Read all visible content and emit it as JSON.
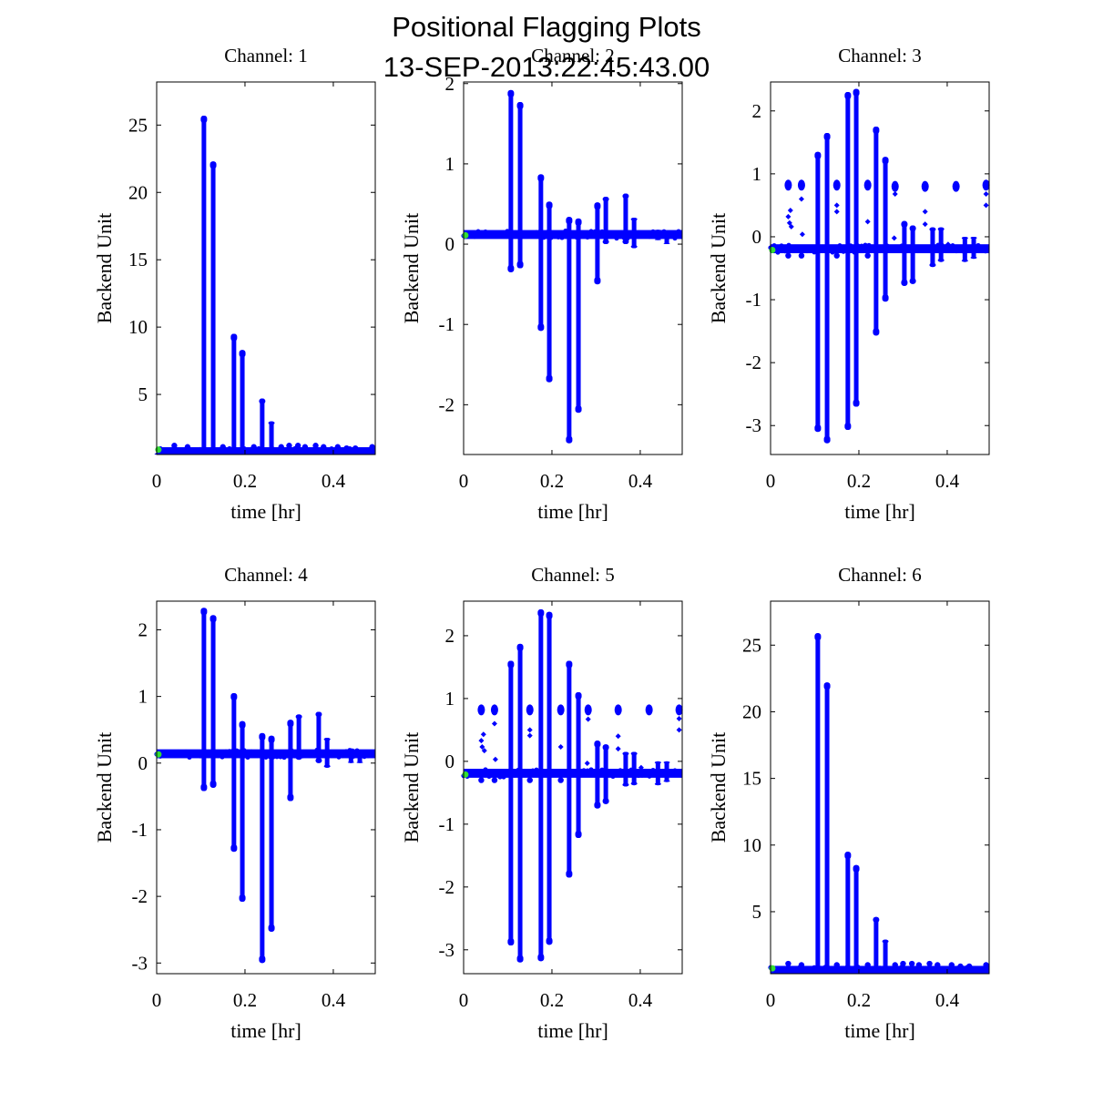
{
  "figure": {
    "title_line1": "Positional Flagging Plots",
    "title_line2": "13-SEP-2013:22:45:43.00"
  },
  "colors": {
    "data": "#0000ff",
    "start_marker": "#33dd33",
    "axes": "#000000"
  },
  "chart_data": [
    {
      "type": "scatter",
      "title": "Channel: 1",
      "xlabel": "time [hr]",
      "ylabel": "Backend Unit",
      "xlim": [
        0,
        0.495
      ],
      "ylim": [
        0.54,
        28.2
      ],
      "xticks": [
        0,
        0.2,
        0.4
      ],
      "xtick_labels": [
        "0",
        "0.2",
        "0.4"
      ],
      "yticks": [
        5,
        10,
        15,
        20,
        25
      ],
      "ytick_labels": [
        "5",
        "10",
        "15",
        "20",
        "25"
      ],
      "baseline": 0.75,
      "start_point": [
        0.004,
        0.9
      ],
      "spikes": [
        [
          0.107,
          0.6,
          25.7
        ],
        [
          0.128,
          0.6,
          22.3
        ],
        [
          0.175,
          0.6,
          9.5
        ],
        [
          0.194,
          0.6,
          8.3
        ],
        [
          0.239,
          0.6,
          4.7
        ],
        [
          0.26,
          0.6,
          3.0
        ]
      ],
      "bumps": [
        [
          0.04,
          1.2
        ],
        [
          0.07,
          1.1
        ],
        [
          0.15,
          1.1
        ],
        [
          0.22,
          1.1
        ],
        [
          0.282,
          1.1
        ],
        [
          0.3,
          1.2
        ],
        [
          0.32,
          1.2
        ],
        [
          0.336,
          1.1
        ],
        [
          0.36,
          1.2
        ],
        [
          0.378,
          1.1
        ],
        [
          0.41,
          1.1
        ],
        [
          0.43,
          1.0
        ],
        [
          0.45,
          1.0
        ],
        [
          0.488,
          1.1
        ]
      ],
      "clusters": []
    },
    {
      "type": "scatter",
      "title": "Channel: 2",
      "xlabel": "time [hr]",
      "ylabel": "Backend Unit",
      "xlim": [
        0,
        0.495
      ],
      "ylim": [
        -2.62,
        2.02
      ],
      "xticks": [
        0,
        0.2,
        0.4
      ],
      "xtick_labels": [
        "0",
        "0.2",
        "0.4"
      ],
      "yticks": [
        -2,
        -1,
        0,
        1,
        2
      ],
      "ytick_labels": [
        "-2",
        "-1",
        "0",
        "1",
        "2"
      ],
      "baseline": 0.12,
      "start_point": [
        0.004,
        0.11
      ],
      "spikes": [
        [
          0.107,
          -0.35,
          1.92
        ],
        [
          0.128,
          -0.3,
          1.77
        ],
        [
          0.175,
          -1.08,
          0.87
        ],
        [
          0.194,
          -1.72,
          0.53
        ],
        [
          0.239,
          -2.48,
          0.34
        ],
        [
          0.26,
          -2.1,
          0.32
        ],
        [
          0.303,
          -0.5,
          0.52
        ],
        [
          0.322,
          0.0,
          0.59
        ],
        [
          0.367,
          0.0,
          0.63
        ],
        [
          0.386,
          -0.05,
          0.33
        ],
        [
          0.44,
          0.05,
          0.18
        ],
        [
          0.46,
          0.0,
          0.17
        ]
      ],
      "bumps": [],
      "clusters": []
    },
    {
      "type": "scatter",
      "title": "Channel: 3",
      "xlabel": "time [hr]",
      "ylabel": "Backend Unit",
      "xlim": [
        0,
        0.495
      ],
      "ylim": [
        -3.46,
        2.46
      ],
      "xticks": [
        0,
        0.2,
        0.4
      ],
      "xtick_labels": [
        "0",
        "0.2",
        "0.4"
      ],
      "yticks": [
        -3,
        -2,
        -1,
        0,
        1,
        2
      ],
      "ytick_labels": [
        "-3",
        "-2",
        "-1",
        "0",
        "1",
        "2"
      ],
      "baseline": -0.19,
      "start_point": [
        0.004,
        -0.21
      ],
      "spikes": [
        [
          0.107,
          -3.1,
          1.35
        ],
        [
          0.128,
          -3.28,
          1.65
        ],
        [
          0.175,
          -3.07,
          2.3
        ],
        [
          0.194,
          -2.7,
          2.35
        ],
        [
          0.239,
          -1.57,
          1.75
        ],
        [
          0.26,
          -1.03,
          1.27
        ],
        [
          0.303,
          -0.78,
          0.25
        ],
        [
          0.322,
          -0.75,
          0.18
        ],
        [
          0.367,
          -0.48,
          0.15
        ],
        [
          0.386,
          -0.4,
          0.15
        ],
        [
          0.44,
          -0.4,
          0.0
        ],
        [
          0.46,
          -0.35,
          0.0
        ]
      ],
      "bumps": [
        [
          0.04,
          -0.3
        ],
        [
          0.07,
          -0.3
        ],
        [
          0.15,
          -0.3
        ],
        [
          0.22,
          -0.3
        ]
      ],
      "clusters": [
        [
          0.04,
          0.82
        ],
        [
          0.07,
          0.82
        ],
        [
          0.15,
          0.82
        ],
        [
          0.22,
          0.82
        ],
        [
          0.282,
          0.8
        ],
        [
          0.35,
          0.8
        ],
        [
          0.42,
          0.8
        ],
        [
          0.488,
          0.82
        ]
      ],
      "scatter_points": [
        [
          0.04,
          0.32
        ],
        [
          0.043,
          0.22
        ],
        [
          0.045,
          0.42
        ],
        [
          0.047,
          0.16
        ],
        [
          0.07,
          0.6
        ],
        [
          0.072,
          0.04
        ],
        [
          0.15,
          0.5
        ],
        [
          0.15,
          0.4
        ],
        [
          0.22,
          0.24
        ],
        [
          0.282,
          0.68
        ],
        [
          0.28,
          -0.02
        ],
        [
          0.35,
          0.4
        ],
        [
          0.35,
          0.2
        ],
        [
          0.402,
          -0.12
        ],
        [
          0.488,
          0.68
        ],
        [
          0.488,
          0.5
        ]
      ]
    },
    {
      "type": "scatter",
      "title": "Channel: 4",
      "xlabel": "time [hr]",
      "ylabel": "Backend Unit",
      "xlim": [
        0,
        0.495
      ],
      "ylim": [
        -3.16,
        2.43
      ],
      "xticks": [
        0,
        0.2,
        0.4
      ],
      "xtick_labels": [
        "0",
        "0.2",
        "0.4"
      ],
      "yticks": [
        -3,
        -2,
        -1,
        0,
        1,
        2
      ],
      "ytick_labels": [
        "-3",
        "-2",
        "-1",
        "0",
        "1",
        "2"
      ],
      "baseline": 0.14,
      "start_point": [
        0.004,
        0.13
      ],
      "spikes": [
        [
          0.107,
          -0.42,
          2.33
        ],
        [
          0.128,
          -0.37,
          2.22
        ],
        [
          0.175,
          -1.33,
          1.05
        ],
        [
          0.194,
          -2.08,
          0.63
        ],
        [
          0.239,
          -3.0,
          0.45
        ],
        [
          0.26,
          -2.53,
          0.41
        ],
        [
          0.303,
          -0.57,
          0.65
        ],
        [
          0.322,
          0.05,
          0.73
        ],
        [
          0.367,
          0.0,
          0.77
        ],
        [
          0.386,
          -0.07,
          0.38
        ],
        [
          0.44,
          0.0,
          0.22
        ],
        [
          0.46,
          0.0,
          0.2
        ]
      ],
      "bumps": [],
      "clusters": []
    },
    {
      "type": "scatter",
      "title": "Channel: 5",
      "xlabel": "time [hr]",
      "ylabel": "Backend Unit",
      "xlim": [
        0,
        0.495
      ],
      "ylim": [
        -3.38,
        2.55
      ],
      "xticks": [
        0,
        0.2,
        0.4
      ],
      "xtick_labels": [
        "0",
        "0.2",
        "0.4"
      ],
      "yticks": [
        -3,
        -2,
        -1,
        0,
        1,
        2
      ],
      "ytick_labels": [
        "-3",
        "-2",
        "-1",
        "0",
        "1",
        "2"
      ],
      "baseline": -0.19,
      "start_point": [
        0.004,
        -0.21
      ],
      "spikes": [
        [
          0.107,
          -2.93,
          1.6
        ],
        [
          0.128,
          -3.2,
          1.87
        ],
        [
          0.175,
          -3.18,
          2.42
        ],
        [
          0.194,
          -2.92,
          2.38
        ],
        [
          0.239,
          -1.85,
          1.6
        ],
        [
          0.26,
          -1.22,
          1.1
        ],
        [
          0.303,
          -0.75,
          0.33
        ],
        [
          0.322,
          -0.68,
          0.27
        ],
        [
          0.367,
          -0.4,
          0.15
        ],
        [
          0.386,
          -0.38,
          0.15
        ],
        [
          0.44,
          -0.38,
          0.0
        ],
        [
          0.46,
          -0.33,
          0.0
        ]
      ],
      "bumps": [
        [
          0.04,
          -0.3
        ],
        [
          0.07,
          -0.3
        ],
        [
          0.15,
          -0.3
        ],
        [
          0.22,
          -0.3
        ]
      ],
      "clusters": [
        [
          0.04,
          0.82
        ],
        [
          0.07,
          0.82
        ],
        [
          0.15,
          0.82
        ],
        [
          0.22,
          0.82
        ],
        [
          0.282,
          0.82
        ],
        [
          0.35,
          0.82
        ],
        [
          0.42,
          0.82
        ],
        [
          0.488,
          0.82
        ]
      ],
      "scatter_points": [
        [
          0.04,
          0.33
        ],
        [
          0.042,
          0.23
        ],
        [
          0.045,
          0.43
        ],
        [
          0.047,
          0.17
        ],
        [
          0.07,
          0.6
        ],
        [
          0.072,
          0.03
        ],
        [
          0.15,
          0.5
        ],
        [
          0.15,
          0.41
        ],
        [
          0.22,
          0.23
        ],
        [
          0.282,
          0.67
        ],
        [
          0.28,
          -0.03
        ],
        [
          0.35,
          0.4
        ],
        [
          0.35,
          0.2
        ],
        [
          0.402,
          -0.1
        ],
        [
          0.488,
          0.68
        ],
        [
          0.488,
          0.5
        ]
      ]
    },
    {
      "type": "scatter",
      "title": "Channel: 6",
      "xlabel": "time [hr]",
      "ylabel": "Backend Unit",
      "xlim": [
        0,
        0.495
      ],
      "ylim": [
        0.35,
        28.3
      ],
      "xticks": [
        0,
        0.2,
        0.4
      ],
      "xtick_labels": [
        "0",
        "0.2",
        "0.4"
      ],
      "yticks": [
        5,
        10,
        15,
        20,
        25
      ],
      "ytick_labels": [
        "5",
        "10",
        "15",
        "20",
        "25"
      ],
      "baseline": 0.6,
      "start_point": [
        0.004,
        0.75
      ],
      "spikes": [
        [
          0.107,
          0.45,
          25.9
        ],
        [
          0.128,
          0.45,
          22.2
        ],
        [
          0.175,
          0.45,
          9.5
        ],
        [
          0.194,
          0.45,
          8.5
        ],
        [
          0.239,
          0.45,
          4.6
        ],
        [
          0.26,
          0.45,
          2.9
        ]
      ],
      "bumps": [
        [
          0.04,
          1.1
        ],
        [
          0.07,
          1.0
        ],
        [
          0.15,
          1.0
        ],
        [
          0.22,
          1.0
        ],
        [
          0.282,
          1.0
        ],
        [
          0.3,
          1.1
        ],
        [
          0.32,
          1.1
        ],
        [
          0.336,
          1.0
        ],
        [
          0.36,
          1.1
        ],
        [
          0.378,
          1.0
        ],
        [
          0.41,
          1.0
        ],
        [
          0.43,
          0.9
        ],
        [
          0.45,
          0.9
        ],
        [
          0.488,
          1.0
        ]
      ],
      "clusters": []
    }
  ]
}
